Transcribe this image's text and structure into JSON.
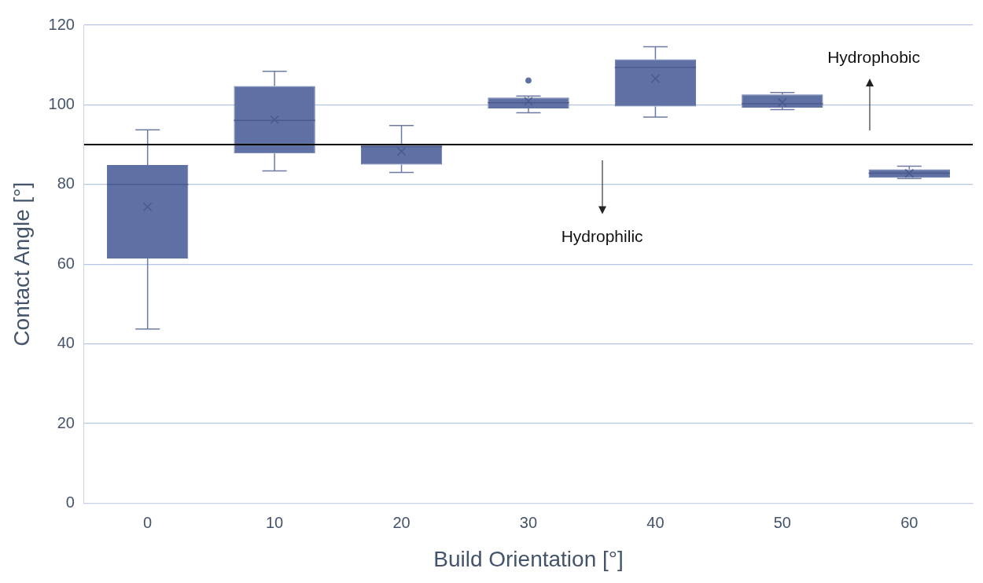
{
  "chart_data": {
    "type": "box",
    "xlabel": "Build Orientation [°]",
    "ylabel": "Contact Angle [°]",
    "categories": [
      "0",
      "10",
      "20",
      "30",
      "40",
      "50",
      "60"
    ],
    "color": "#5e70a4",
    "boxes": [
      {
        "low": 43.7,
        "q1": 61.4,
        "median": 80,
        "q3": 84.9,
        "high": 93.7,
        "mean": 74.4
      },
      {
        "low": 83.4,
        "q1": 87.8,
        "median": 96.1,
        "q3": 104.7,
        "high": 108.4,
        "mean": 96.3
      },
      {
        "low": 83,
        "q1": 85,
        "median": 89.5,
        "q3": 89.9,
        "high": 94.8,
        "mean": 88.3
      },
      {
        "low": 98,
        "q1": 99.1,
        "median": 100.5,
        "q3": 101.8,
        "high": 102.2,
        "mean": 100.9,
        "outliers": [
          106.1
        ]
      },
      {
        "low": 96.9,
        "q1": 99.6,
        "median": 109.4,
        "q3": 111.4,
        "high": 114.6,
        "mean": 106.6
      },
      {
        "low": 98.8,
        "q1": 99.3,
        "median": 100.3,
        "q3": 102.6,
        "high": 103.1,
        "mean": 100.6
      },
      {
        "low": 81.5,
        "q1": 81.7,
        "median": 82.8,
        "q3": 83.8,
        "high": 84.6,
        "mean": 82.8
      }
    ],
    "ylim": [
      0,
      120
    ],
    "yticks": [
      0,
      20,
      40,
      60,
      80,
      100,
      120
    ],
    "grid": "y",
    "legend": false,
    "ref_lines": [
      {
        "axis": "y",
        "value": 90,
        "color": "#000000"
      }
    ],
    "annotations": [
      "Hydrophobic",
      "Hydrophilic"
    ]
  }
}
